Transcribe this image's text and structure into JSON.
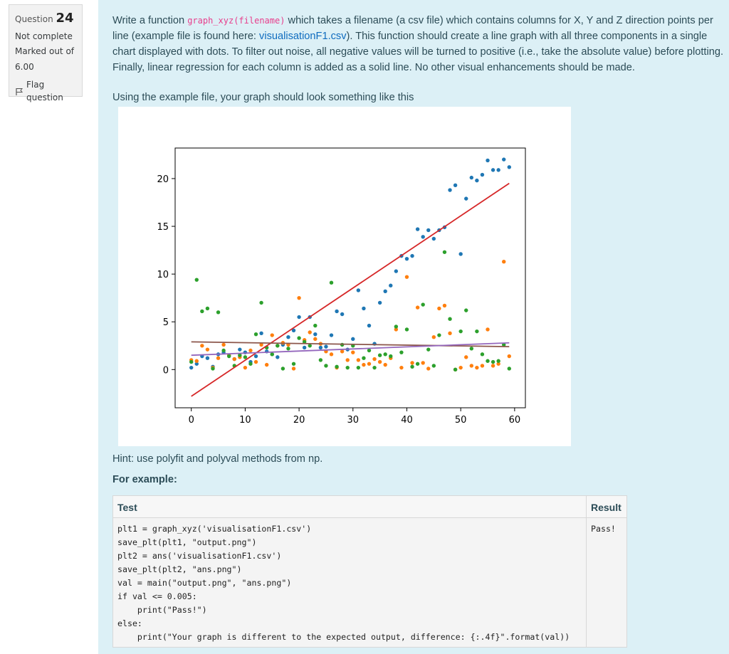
{
  "question_info": {
    "question_label": "Question",
    "question_number": "24",
    "status": "Not complete",
    "marked_out_of_label": "Marked out of",
    "marked_out_of_value": "6.00",
    "flag_label": "Flag question"
  },
  "question": {
    "p1_before_code": "Write a function ",
    "function_signature": "graph_xyz(filename)",
    "p1_after_code": " which takes a filename (a csv file) which contains columns for X, Y and Z direction points per line (example file is found here: ",
    "example_link_text": "visualisationF1.csv",
    "p1_after_link": "). This function should create a line graph with all three components in a single chart displayed with dots. To filter out noise, all negative values will be turned to positive (i.e., take the absolute value) before plotting. Finally, linear regression for each column is added as a solid line. No other visual enhancements should be made.",
    "example_intro": "Using the example file, your graph should look something like this",
    "hint": "Hint: use polyfit and polyval methods from np.",
    "for_example_label": "For example:"
  },
  "colors": {
    "x_series": "#1f77b4",
    "y_series": "#ff7f0e",
    "z_series": "#2ca02c",
    "x_fit": "#d62728",
    "y_fit": "#8c564b",
    "z_fit": "#9467bd"
  },
  "chart_data": {
    "type": "scatter",
    "title": "",
    "xlabel": "",
    "ylabel": "",
    "xlim": [
      -3,
      62
    ],
    "ylim": [
      -4,
      23.2
    ],
    "grid": false,
    "legend": "none",
    "x_ticks": [
      0,
      10,
      20,
      30,
      40,
      50,
      60
    ],
    "y_ticks": [
      0,
      5,
      10,
      15,
      20
    ],
    "series": [
      {
        "color_key": "x_series",
        "x": [
          0,
          1,
          2,
          3,
          4,
          5,
          6,
          7,
          8,
          9,
          10,
          11,
          12,
          13,
          14,
          15,
          16,
          17,
          18,
          19,
          20,
          21,
          22,
          23,
          24,
          25,
          26,
          27,
          28,
          29,
          30,
          31,
          32,
          33,
          34,
          35,
          36,
          37,
          38,
          39,
          40,
          41,
          42,
          43,
          44,
          45,
          46,
          47,
          48,
          49,
          50,
          51,
          52,
          53,
          54,
          55,
          56,
          57,
          58,
          59
        ],
        "y": [
          0.2,
          0.6,
          1.4,
          1.2,
          0.3,
          1.6,
          1.8,
          1.5,
          1.1,
          2.1,
          1.8,
          0.8,
          1.4,
          3.8,
          1.9,
          1.6,
          1.3,
          2.6,
          3.4,
          4.1,
          5.5,
          2.3,
          5.5,
          3.7,
          2.3,
          2.4,
          3.6,
          6.1,
          5.8,
          2.1,
          3.2,
          8.3,
          6.4,
          4.6,
          2.7,
          7.0,
          8.2,
          8.8,
          10.3,
          11.9,
          11.6,
          11.9,
          14.7,
          13.9,
          14.6,
          13.7,
          14.6,
          14.9,
          18.8,
          19.3,
          12.1,
          17.9,
          20.1,
          19.8,
          20.4,
          21.9,
          20.9,
          20.9,
          22.0,
          21.2
        ]
      },
      {
        "color_key": "y_series",
        "x": [
          0,
          1,
          2,
          3,
          4,
          5,
          6,
          7,
          8,
          9,
          10,
          11,
          12,
          13,
          14,
          15,
          16,
          17,
          18,
          19,
          20,
          21,
          22,
          23,
          24,
          25,
          26,
          27,
          28,
          29,
          30,
          31,
          32,
          33,
          34,
          35,
          36,
          37,
          38,
          39,
          40,
          41,
          42,
          43,
          44,
          45,
          46,
          47,
          48,
          49,
          50,
          51,
          52,
          53,
          54,
          55,
          56,
          57,
          58,
          59
        ],
        "y": [
          1.0,
          0.9,
          2.5,
          2.1,
          0.2,
          1.2,
          2.6,
          1.5,
          1.1,
          1.3,
          0.2,
          2.0,
          0.8,
          2.6,
          0.5,
          3.6,
          2.5,
          2.8,
          2.6,
          0.1,
          7.5,
          3.1,
          3.9,
          3.2,
          2.7,
          1.9,
          1.6,
          0.2,
          1.9,
          1.0,
          1.8,
          1.0,
          0.5,
          0.6,
          1.1,
          0.8,
          0.5,
          1.2,
          4.2,
          0.2,
          9.7,
          0.7,
          6.5,
          0.7,
          0.1,
          3.4,
          6.4,
          6.7,
          3.8,
          0.0,
          0.2,
          1.3,
          0.4,
          0.2,
          0.4,
          4.2,
          0.4,
          0.6,
          11.3,
          1.4
        ]
      },
      {
        "color_key": "z_series",
        "x": [
          0,
          1,
          2,
          3,
          4,
          5,
          6,
          7,
          8,
          9,
          10,
          11,
          12,
          13,
          14,
          15,
          16,
          17,
          18,
          19,
          20,
          21,
          22,
          23,
          24,
          25,
          26,
          27,
          28,
          29,
          30,
          31,
          32,
          33,
          34,
          35,
          36,
          37,
          38,
          39,
          40,
          41,
          42,
          43,
          44,
          45,
          46,
          47,
          48,
          49,
          50,
          51,
          52,
          53,
          54,
          55,
          56,
          57,
          58,
          59
        ],
        "y": [
          0.8,
          9.4,
          6.1,
          6.4,
          0.1,
          6.0,
          2.0,
          1.4,
          0.4,
          1.5,
          1.3,
          0.6,
          3.7,
          7.0,
          2.3,
          1.6,
          2.5,
          0.1,
          2.2,
          0.6,
          3.3,
          2.9,
          2.5,
          4.6,
          1.0,
          0.4,
          9.1,
          0.3,
          2.6,
          0.2,
          2.5,
          0.2,
          1.2,
          2.0,
          0.2,
          1.5,
          1.6,
          1.4,
          4.5,
          1.8,
          4.2,
          0.3,
          0.6,
          6.8,
          2.1,
          0.4,
          3.6,
          12.3,
          5.3,
          0.0,
          4.0,
          6.2,
          2.2,
          4.0,
          1.6,
          0.9,
          0.8,
          0.9,
          2.6,
          0.1
        ]
      }
    ],
    "fits": [
      {
        "color_key": "x_fit",
        "x": [
          0,
          59
        ],
        "y": [
          -2.8,
          19.5
        ]
      },
      {
        "color_key": "y_fit",
        "x": [
          0,
          59
        ],
        "y": [
          2.9,
          2.4
        ]
      },
      {
        "color_key": "z_fit",
        "x": [
          0,
          59
        ],
        "y": [
          1.5,
          2.8
        ]
      }
    ]
  },
  "example_table": {
    "headers": {
      "test": "Test",
      "result": "Result"
    },
    "test_code": "plt1 = graph_xyz('visualisationF1.csv')\nsave_plt(plt1, \"output.png\")\nplt2 = ans('visualisationF1.csv')\nsave_plt(plt2, \"ans.png\")\nval = main(\"output.png\", \"ans.png\")\nif val <= 0.005:\n    print(\"Pass!\")\nelse:\n    print(\"Your graph is different to the expected output, difference: {:.4f}\".format(val))",
    "result": "Pass!"
  }
}
